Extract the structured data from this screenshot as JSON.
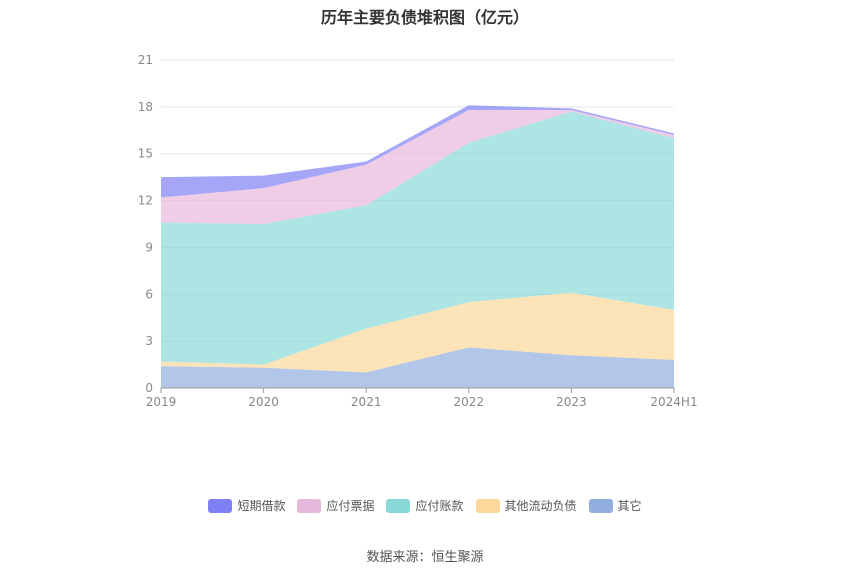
{
  "chart_data": {
    "type": "area",
    "stacked": true,
    "title": "历年主要负债堆积图（亿元）",
    "categories": [
      "2019",
      "2020",
      "2021",
      "2022",
      "2023",
      "2024H1"
    ],
    "ylim": [
      0,
      21
    ],
    "yticks": [
      0,
      3,
      6,
      9,
      12,
      15,
      18,
      21
    ],
    "grid": true,
    "legend_position": "bottom",
    "series": [
      {
        "name": "其它",
        "color": "#92aedf",
        "values": [
          1.4,
          1.3,
          1.0,
          2.6,
          2.1,
          1.8
        ]
      },
      {
        "name": "其他流动负债",
        "color": "#fcd89a",
        "values": [
          0.3,
          0.2,
          2.8,
          2.9,
          4.0,
          3.2
        ]
      },
      {
        "name": "应付账款",
        "color": "#8ad8d8",
        "values": [
          8.9,
          9.0,
          7.9,
          10.2,
          11.6,
          11.0
        ]
      },
      {
        "name": "应付票据",
        "color": "#e8b8dc",
        "values": [
          1.6,
          2.3,
          2.6,
          2.1,
          0.1,
          0.2
        ]
      },
      {
        "name": "短期借款",
        "color": "#7f80f5",
        "values": [
          1.3,
          0.8,
          0.2,
          0.3,
          0.1,
          0.1
        ]
      }
    ],
    "legend_order": [
      "短期借款",
      "应付票据",
      "应付账款",
      "其他流动负债",
      "其它"
    ]
  },
  "source": "数据来源：恒生聚源"
}
